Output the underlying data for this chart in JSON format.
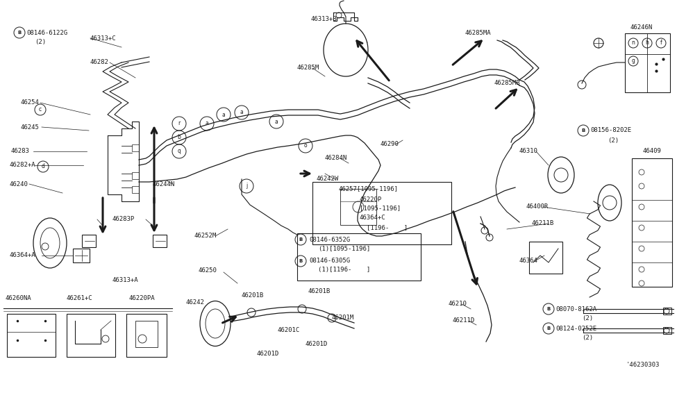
{
  "bg_color": "#ffffff",
  "line_color": "#1a1a1a",
  "fig_width": 9.75,
  "fig_height": 5.66,
  "dpi": 100,
  "text_labels": [
    [
      "08146-6122G",
      38,
      47,
      6.5,
      "left",
      false
    ],
    [
      "(2)",
      50,
      60,
      6.5,
      "left",
      false
    ],
    [
      "46313+C",
      130,
      55,
      6.5,
      "left",
      false
    ],
    [
      "46282",
      130,
      90,
      6.5,
      "left",
      false
    ],
    [
      "46254",
      30,
      148,
      6.5,
      "left",
      false
    ],
    [
      "46245",
      30,
      183,
      6.5,
      "left",
      false
    ],
    [
      "46283",
      15,
      218,
      6.5,
      "left",
      false
    ],
    [
      "46282+A",
      13,
      238,
      6.5,
      "left",
      false
    ],
    [
      "46240",
      13,
      265,
      6.5,
      "left",
      false
    ],
    [
      "46283P",
      162,
      316,
      6.5,
      "left",
      false
    ],
    [
      "46364+A",
      13,
      368,
      6.5,
      "left",
      false
    ],
    [
      "46313+A",
      162,
      404,
      6.5,
      "left",
      false
    ],
    [
      "46260NA",
      8,
      430,
      6.5,
      "left",
      false
    ],
    [
      "46261+C",
      95,
      430,
      6.5,
      "left",
      false
    ],
    [
      "46220PA",
      185,
      430,
      6.5,
      "left",
      false
    ],
    [
      "46244N",
      220,
      265,
      6.5,
      "left",
      false
    ],
    [
      "46252M",
      280,
      340,
      6.5,
      "left",
      false
    ],
    [
      "46250",
      285,
      390,
      6.5,
      "left",
      false
    ],
    [
      "46242",
      268,
      436,
      6.5,
      "left",
      false
    ],
    [
      "46201B",
      348,
      426,
      6.5,
      "left",
      false
    ],
    [
      "46201B",
      444,
      420,
      6.5,
      "left",
      false
    ],
    [
      "46201C",
      400,
      476,
      6.5,
      "left",
      false
    ],
    [
      "46201D",
      440,
      496,
      6.5,
      "left",
      false
    ],
    [
      "46201D",
      370,
      510,
      6.5,
      "left",
      false
    ],
    [
      "46201M",
      478,
      458,
      6.5,
      "left",
      false
    ],
    [
      "46313+B",
      448,
      28,
      6.5,
      "left",
      false
    ],
    [
      "46285M",
      428,
      98,
      6.5,
      "left",
      false
    ],
    [
      "46284N",
      468,
      228,
      6.5,
      "left",
      false
    ],
    [
      "46290",
      548,
      208,
      6.5,
      "left",
      false
    ],
    [
      "46242W",
      455,
      258,
      6.5,
      "left",
      false
    ],
    [
      "46257[1095-1196]",
      488,
      272,
      6.5,
      "left",
      false
    ],
    [
      "46220P",
      518,
      288,
      6.5,
      "left",
      false
    ],
    [
      "[1095-1196]",
      518,
      300,
      6.5,
      "left",
      false
    ],
    [
      "46364+C",
      518,
      314,
      6.5,
      "left",
      false
    ],
    [
      "[1196-    ]",
      528,
      328,
      6.5,
      "left",
      false
    ],
    [
      "08146-6352G",
      445,
      345,
      6.5,
      "left",
      false
    ],
    [
      "(1)[1095-1196]",
      458,
      358,
      6.5,
      "left",
      false
    ],
    [
      "08146-6305G",
      445,
      376,
      6.5,
      "left",
      false
    ],
    [
      "(1)[1196-    ]",
      458,
      389,
      6.5,
      "left",
      false
    ],
    [
      "46285MA",
      670,
      48,
      6.5,
      "left",
      false
    ],
    [
      "46285MB",
      712,
      120,
      6.5,
      "left",
      false
    ],
    [
      "46246N",
      908,
      40,
      6.5,
      "left",
      false
    ],
    [
      "08156-8202E",
      850,
      188,
      6.5,
      "left",
      false
    ],
    [
      "(2)",
      875,
      202,
      6.5,
      "left",
      false
    ],
    [
      "46310",
      748,
      218,
      6.5,
      "left",
      false
    ],
    [
      "46409",
      925,
      218,
      6.5,
      "left",
      false
    ],
    [
      "46400R",
      758,
      298,
      6.5,
      "left",
      false
    ],
    [
      "46211B",
      765,
      322,
      6.5,
      "left",
      false
    ],
    [
      "46364",
      748,
      375,
      6.5,
      "left",
      false
    ],
    [
      "46210",
      645,
      438,
      6.5,
      "left",
      false
    ],
    [
      "46211D",
      652,
      462,
      6.5,
      "left",
      false
    ],
    [
      "08070-8162A",
      800,
      445,
      6.5,
      "left",
      false
    ],
    [
      "(2)",
      838,
      458,
      6.5,
      "left",
      false
    ],
    [
      "08124-0252E",
      800,
      473,
      6.5,
      "left",
      false
    ],
    [
      "(2)",
      838,
      487,
      6.5,
      "left",
      false
    ],
    [
      "'46230303",
      902,
      525,
      6.5,
      "left",
      false
    ]
  ],
  "circle_b_labels": [
    [
      28,
      47,
      "B"
    ],
    [
      433,
      345,
      "B"
    ],
    [
      433,
      376,
      "B"
    ],
    [
      840,
      188,
      "B"
    ],
    [
      790,
      445,
      "B"
    ],
    [
      790,
      473,
      "B"
    ]
  ],
  "circle_letter_labels": [
    [
      58,
      158,
      "c"
    ],
    [
      62,
      240,
      "d"
    ]
  ]
}
